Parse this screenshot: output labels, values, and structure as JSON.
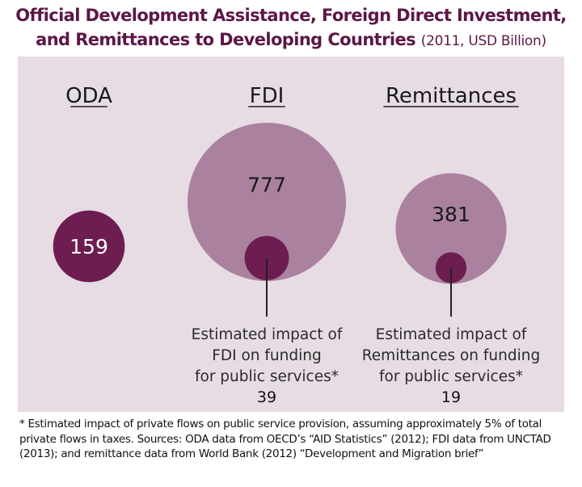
{
  "title_line1": "Official Development Assistance, Foreign Direct Investment,",
  "title_line2": "and Remittances to Developing Countries",
  "title_sub": "(2011, USD Billion)",
  "colors": {
    "title": "#5c1746",
    "panel": "#e7dce4",
    "dark_bubble": "#6d1d50",
    "light_bubble": "#aa829f"
  },
  "chart_data": {
    "type": "bubble",
    "unit": "USD Billion",
    "year": 2011,
    "categories": [
      "ODA",
      "FDI",
      "Remittances"
    ],
    "values": [
      159,
      777,
      381
    ],
    "impact": [
      {
        "category": "FDI",
        "label_lines": [
          "Estimated impact of",
          "FDI on funding",
          "for public services*"
        ],
        "value": 39
      },
      {
        "category": "Remittances",
        "label_lines": [
          "Estimated impact of",
          "Remittances on funding",
          "for public services*"
        ],
        "value": 19
      }
    ]
  },
  "footnote": "* Estimated impact of private flows on public service provision, assuming approximately 5% of total private flows in taxes. Sources: ODA data from OECD’s “AID Statistics” (2012); FDI data from UNCTAD (2013); and remittance data from World Bank (2012) “Development and Migration brief”"
}
